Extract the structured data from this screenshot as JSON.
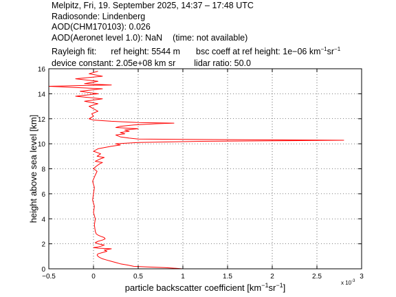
{
  "header": {
    "line1": "Melpitz, Fri, 19. September 2025, 14:37 – 17:48 UTC",
    "line2": "Radiosonde: Lindenberg",
    "line3": "AOD(CHM170103): 0.026",
    "line4a": "AOD(Aeronet level 1.0): NaN",
    "line4b": "(time: not available)",
    "line5_label": "Rayleigh fit:",
    "line5_refheight": "ref height: 5544 m",
    "line5_bsc_prefix": "bsc coeff at ref height: 1e−06 km",
    "line5_bsc_exp1": "−1",
    "line5_bsc_mid": "sr",
    "line5_bsc_exp2": "−1",
    "line6_devconst": "device constant: 2.05e+08 km sr",
    "line6_lidar": "lidar ratio: 50.0"
  },
  "chart_data": {
    "type": "line",
    "xlabel": "particle backscatter coefficient [km⁻¹sr⁻¹]",
    "xlabel_prefix": "particle backscatter coefficient [km",
    "xlabel_exp1": "−1",
    "xlabel_mid": "sr",
    "xlabel_exp2": "−1",
    "xlabel_suffix": "]",
    "ylabel": "height above sea level [km]",
    "x_multiplier_label": "x 10",
    "x_multiplier_exp": "-3",
    "xlim": [
      -0.5,
      3
    ],
    "ylim": [
      0,
      16
    ],
    "xticks": [
      -0.5,
      0,
      0.5,
      1,
      1.5,
      2,
      2.5,
      3
    ],
    "xtick_labels": [
      "−0.5",
      "0",
      "0.5",
      "1",
      "1.5",
      "2",
      "2.5",
      "3"
    ],
    "yticks": [
      0,
      2,
      4,
      6,
      8,
      10,
      12,
      14,
      16
    ],
    "ytick_labels": [
      "0",
      "2",
      "4",
      "6",
      "8",
      "10",
      "12",
      "14",
      "16"
    ],
    "grid": true,
    "series": [
      {
        "color": "#ff0000",
        "points": [
          [
            1.0,
            0.0
          ],
          [
            0.8,
            0.1
          ],
          [
            0.6,
            0.15
          ],
          [
            0.45,
            0.2
          ],
          [
            0.38,
            0.3
          ],
          [
            0.3,
            0.4
          ],
          [
            0.25,
            0.5
          ],
          [
            0.2,
            0.6
          ],
          [
            0.15,
            0.7
          ],
          [
            0.1,
            0.8
          ],
          [
            0.07,
            0.9
          ],
          [
            0.05,
            1.0
          ],
          [
            0.04,
            1.1
          ],
          [
            0.05,
            1.2
          ],
          [
            0.1,
            1.3
          ],
          [
            0.15,
            1.4
          ],
          [
            0.12,
            1.5
          ],
          [
            0.2,
            1.6
          ],
          [
            0.05,
            1.65
          ],
          [
            0.0,
            1.7
          ],
          [
            0.05,
            1.75
          ],
          [
            0.08,
            1.8
          ],
          [
            0.12,
            1.9
          ],
          [
            0.05,
            2.0
          ],
          [
            0.02,
            2.1
          ],
          [
            0.05,
            2.2
          ],
          [
            0.1,
            2.3
          ],
          [
            0.13,
            2.4
          ],
          [
            0.12,
            2.5
          ],
          [
            0.08,
            2.6
          ],
          [
            0.05,
            2.7
          ],
          [
            0.03,
            2.8
          ],
          [
            0.02,
            3.0
          ],
          [
            0.01,
            3.5
          ],
          [
            0.02,
            4.0
          ],
          [
            0.0,
            4.5
          ],
          [
            0.01,
            5.0
          ],
          [
            -0.01,
            5.5
          ],
          [
            0.0,
            6.0
          ],
          [
            0.01,
            6.5
          ],
          [
            -0.01,
            7.0
          ],
          [
            0.02,
            7.5
          ],
          [
            0.04,
            7.8
          ],
          [
            0.0,
            8.0
          ],
          [
            0.03,
            8.2
          ],
          [
            0.07,
            8.4
          ],
          [
            0.1,
            8.5
          ],
          [
            0.02,
            8.6
          ],
          [
            0.08,
            8.8
          ],
          [
            0.12,
            8.9
          ],
          [
            0.04,
            9.0
          ],
          [
            0.08,
            9.2
          ],
          [
            0.0,
            9.4
          ],
          [
            0.05,
            9.6
          ],
          [
            0.2,
            9.8
          ],
          [
            0.3,
            9.9
          ],
          [
            0.25,
            10.0
          ],
          [
            0.5,
            10.1
          ],
          [
            1.2,
            10.2
          ],
          [
            2.2,
            10.25
          ],
          [
            2.8,
            10.28
          ],
          [
            2.5,
            10.3
          ],
          [
            1.5,
            10.33
          ],
          [
            0.5,
            10.38
          ],
          [
            0.4,
            10.45
          ],
          [
            0.3,
            10.55
          ],
          [
            0.25,
            10.7
          ],
          [
            0.35,
            10.8
          ],
          [
            0.3,
            10.9
          ],
          [
            0.4,
            11.0
          ],
          [
            0.35,
            11.1
          ],
          [
            0.5,
            11.2
          ],
          [
            0.25,
            11.3
          ],
          [
            0.3,
            11.4
          ],
          [
            0.45,
            11.5
          ],
          [
            0.7,
            11.6
          ],
          [
            0.9,
            11.65
          ],
          [
            0.5,
            11.7
          ],
          [
            0.2,
            11.8
          ],
          [
            0.0,
            11.9
          ],
          [
            -0.05,
            12.0
          ],
          [
            0.0,
            12.2
          ],
          [
            -0.02,
            12.4
          ],
          [
            0.05,
            12.6
          ],
          [
            0.0,
            12.8
          ],
          [
            -0.05,
            13.0
          ],
          [
            0.05,
            13.2
          ],
          [
            -0.1,
            13.4
          ],
          [
            0.1,
            13.6
          ],
          [
            -0.2,
            13.8
          ],
          [
            0.05,
            14.0
          ],
          [
            -0.15,
            14.2
          ],
          [
            0.1,
            14.4
          ],
          [
            -0.5,
            14.6
          ],
          [
            0.2,
            14.7
          ],
          [
            -0.1,
            14.8
          ],
          [
            0.05,
            15.0
          ],
          [
            -0.2,
            15.2
          ],
          [
            0.1,
            15.4
          ],
          [
            -0.05,
            15.6
          ],
          [
            0.05,
            15.8
          ]
        ]
      }
    ]
  }
}
